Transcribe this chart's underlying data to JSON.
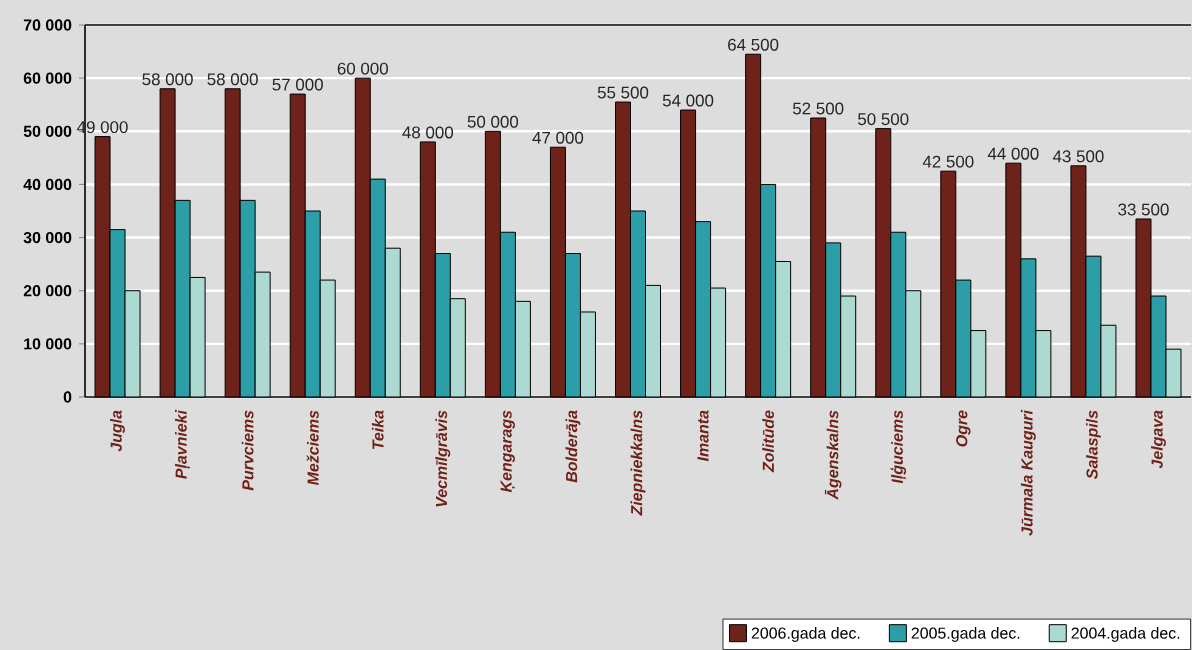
{
  "chart_data": {
    "type": "bar",
    "categories": [
      "Jugla",
      "Pļavnieki",
      "Purvciems",
      "Mežciems",
      "Teika",
      "Vecmīlgrāvis",
      "Ķengarags",
      "Bolderāja",
      "Ziepniekkalns",
      "Imanta",
      "Zolitūde",
      "Āgenskalns",
      "Iļģuciems",
      "Ogre",
      "Jūrmala Kauguri",
      "Salaspils",
      "Jelgava"
    ],
    "series": [
      {
        "name": "2006.gada dec.",
        "color": "#6e2219",
        "values": [
          49000,
          58000,
          58000,
          57000,
          60000,
          48000,
          50000,
          47000,
          55500,
          54000,
          64500,
          52500,
          50500,
          42500,
          44000,
          43500,
          33500
        ],
        "value_labels": [
          "49 000",
          "58 000",
          "58 000",
          "57 000",
          "60 000",
          "48 000",
          "50 000",
          "47 000",
          "55 500",
          "54 000",
          "64 500",
          "52 500",
          "50 500",
          "42 500",
          "44 000",
          "43 500",
          "33 500"
        ]
      },
      {
        "name": "2005.gada dec.",
        "color": "#2b9ea8",
        "values": [
          31500,
          37000,
          37000,
          35000,
          41000,
          27000,
          31000,
          27000,
          35000,
          33000,
          40000,
          29000,
          31000,
          22000,
          26000,
          26500,
          19000
        ]
      },
      {
        "name": "2004.gada dec.",
        "color": "#acd9d2",
        "values": [
          20000,
          22500,
          23500,
          22000,
          28000,
          18500,
          18000,
          16000,
          21000,
          20500,
          25500,
          19000,
          20000,
          12500,
          12500,
          13500,
          9000
        ]
      }
    ],
    "ylim": [
      0,
      70000
    ],
    "yticks": [
      {
        "value": 0,
        "label": "0"
      },
      {
        "value": 10000,
        "label": "10 000"
      },
      {
        "value": 20000,
        "label": "20 000"
      },
      {
        "value": 30000,
        "label": "30 000"
      },
      {
        "value": 40000,
        "label": "40 000"
      },
      {
        "value": 50000,
        "label": "50 000"
      },
      {
        "value": 60000,
        "label": "60 000"
      },
      {
        "value": 70000,
        "label": "70 000"
      }
    ],
    "grid": "y",
    "legend": "bottom right"
  }
}
